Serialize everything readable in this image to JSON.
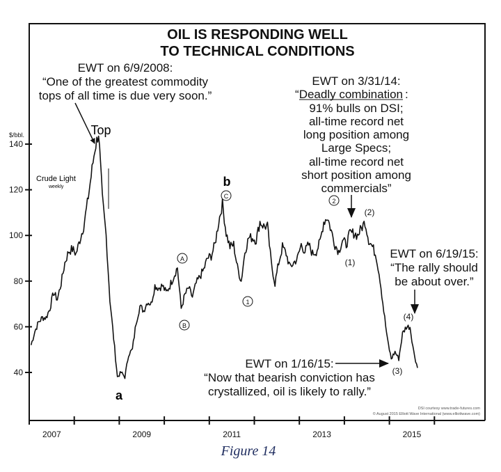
{
  "chart_data": {
    "type": "line",
    "title_lines": [
      "OIL IS RESPONDING WELL",
      "TO TECHNICAL CONDITIONS"
    ],
    "series_label": "Crude Light",
    "series_sublabel": "weekly",
    "ylabel": "$/bbl.",
    "ylim": [
      19,
      193
    ],
    "xlim": [
      2007,
      2017.1
    ],
    "yticks": [
      40,
      60,
      80,
      100,
      120,
      140
    ],
    "xticks": [
      2007,
      2008,
      2009,
      2010,
      2011,
      2012,
      2013,
      2014,
      2015,
      2016
    ],
    "xtick_labels": [
      {
        "year": 2007,
        "label": "2007"
      },
      {
        "year": 2009,
        "label": "2009"
      },
      {
        "year": 2011,
        "label": "2011"
      },
      {
        "year": 2013,
        "label": "2013"
      },
      {
        "year": 2015,
        "label": "2015"
      }
    ],
    "start": 2007,
    "monthly_values": [
      52,
      58,
      62,
      64,
      64,
      68,
      75,
      72,
      79,
      88,
      93,
      94,
      92,
      98,
      104,
      114,
      126,
      138,
      145,
      116,
      100,
      72,
      55,
      38,
      40,
      38,
      48,
      50,
      62,
      69,
      67,
      71,
      70,
      78,
      77,
      78,
      75,
      78,
      82,
      86,
      68,
      74,
      77,
      73,
      79,
      82,
      85,
      90,
      91,
      96,
      106,
      114,
      101,
      95,
      96,
      86,
      80,
      93,
      99,
      99,
      98,
      106,
      104,
      104,
      88,
      79,
      88,
      95,
      92,
      86,
      88,
      90,
      96,
      93,
      96,
      92,
      93,
      97,
      106,
      108,
      102,
      96,
      93,
      98,
      96,
      101,
      101,
      100,
      103,
      106,
      98,
      95,
      91,
      81,
      67,
      54,
      46,
      49,
      46,
      57,
      60,
      60,
      49,
      42
    ],
    "wave_labels": {
      "top": "Top",
      "a": "a",
      "b": "b",
      "A": "A",
      "B": "B",
      "C": "C",
      "one": "1",
      "two": "2",
      "p1": "(1)",
      "p2": "(2)",
      "p3": "(3)",
      "p4": "(4)"
    },
    "annotations": {
      "ewt_2008": [
        "EWT on 6/9/2008:",
        "“One of the greatest commodity",
        "tops of all time is due very soon.”"
      ],
      "ewt_2014_head": "EWT on 3/31/14:",
      "ewt_2014_underlined": "“Deadly combination",
      "ewt_2014_colon": ":",
      "ewt_2014": [
        "91% bulls on DSI;",
        "all-time record net",
        "long position among",
        "Large Specs;",
        "all-time record net",
        "short position among",
        "commercials”"
      ],
      "ewt_2015_jun": [
        "EWT on 6/19/15:",
        "“The rally should",
        "be about over.”"
      ],
      "ewt_2015_jan": [
        "EWT on 1/16/15:",
        "“Now that bearish conviction has",
        "crystallized, oil is likely to rally.”"
      ]
    },
    "credits": [
      "DSI courtesy www.trade-futures.com",
      "© August 2015 Elliott Wave International (www.elliottwave.com)"
    ]
  },
  "caption": "Figure 14"
}
